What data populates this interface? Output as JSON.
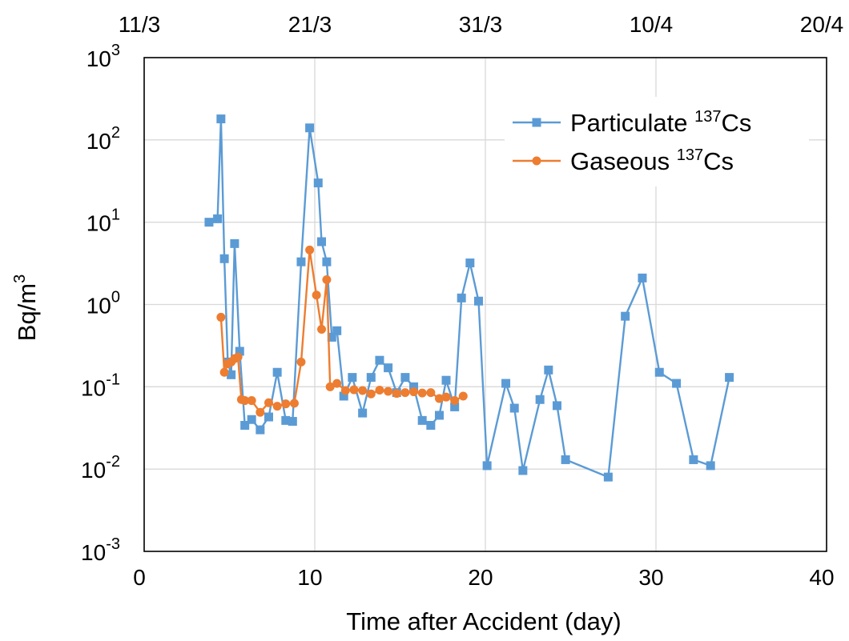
{
  "chart_data": {
    "type": "line",
    "title": "",
    "xlabel": "Time after Accident (day)",
    "ylabel": "Bq/m",
    "ylabel_sup": "3",
    "xlim": [
      0,
      40
    ],
    "ylim": [
      0.001,
      1000
    ],
    "y_scale": "log",
    "grid": true,
    "legend_position": "top-right",
    "x_ticks": [
      0,
      10,
      20,
      30,
      40
    ],
    "y_ticks": [
      {
        "base": "10",
        "exp": "-3",
        "value": 0.001
      },
      {
        "base": "10",
        "exp": "-2",
        "value": 0.01
      },
      {
        "base": "10",
        "exp": "-1",
        "value": 0.1
      },
      {
        "base": "10",
        "exp": "0",
        "value": 1
      },
      {
        "base": "10",
        "exp": "1",
        "value": 10
      },
      {
        "base": "10",
        "exp": "2",
        "value": 100
      },
      {
        "base": "10",
        "exp": "3",
        "value": 1000
      }
    ],
    "top_axis_ticks": [
      {
        "label": "11/3",
        "x": 0
      },
      {
        "label": "21/3",
        "x": 10
      },
      {
        "label": "31/3",
        "x": 20
      },
      {
        "label": "10/4",
        "x": 30
      },
      {
        "label": "20/4",
        "x": 40
      }
    ],
    "series": [
      {
        "name_prefix": "Particulate ",
        "name_sup": "137",
        "name_suffix": "Cs",
        "color": "#5b9bd5",
        "marker": "square",
        "points": [
          [
            3.8,
            10
          ],
          [
            4.3,
            11
          ],
          [
            4.5,
            180
          ],
          [
            4.7,
            3.6
          ],
          [
            4.9,
            0.2
          ],
          [
            5.1,
            0.14
          ],
          [
            5.3,
            5.5
          ],
          [
            5.6,
            0.27
          ],
          [
            5.9,
            0.034
          ],
          [
            6.3,
            0.04
          ],
          [
            6.8,
            0.03
          ],
          [
            7.3,
            0.043
          ],
          [
            7.8,
            0.15
          ],
          [
            8.3,
            0.039
          ],
          [
            8.7,
            0.038
          ],
          [
            9.2,
            3.3
          ],
          [
            9.7,
            140
          ],
          [
            10.2,
            30
          ],
          [
            10.4,
            5.8
          ],
          [
            10.7,
            3.3
          ],
          [
            11.0,
            0.4
          ],
          [
            11.3,
            0.48
          ],
          [
            11.7,
            0.077
          ],
          [
            12.2,
            0.13
          ],
          [
            12.8,
            0.048
          ],
          [
            13.3,
            0.13
          ],
          [
            13.8,
            0.21
          ],
          [
            14.3,
            0.17
          ],
          [
            14.8,
            0.085
          ],
          [
            15.3,
            0.13
          ],
          [
            15.8,
            0.1
          ],
          [
            16.3,
            0.039
          ],
          [
            16.8,
            0.034
          ],
          [
            17.3,
            0.045
          ],
          [
            17.7,
            0.12
          ],
          [
            18.2,
            0.057
          ],
          [
            18.6,
            1.2
          ],
          [
            19.1,
            3.2
          ],
          [
            19.6,
            1.1
          ],
          [
            20.1,
            0.011
          ],
          [
            21.2,
            0.11
          ],
          [
            21.7,
            0.055
          ],
          [
            22.2,
            0.0096
          ],
          [
            23.2,
            0.07
          ],
          [
            23.7,
            0.16
          ],
          [
            24.2,
            0.059
          ],
          [
            24.7,
            0.013
          ],
          [
            27.2,
            0.008
          ],
          [
            28.2,
            0.72
          ],
          [
            29.2,
            2.1
          ],
          [
            30.2,
            0.15
          ],
          [
            31.2,
            0.11
          ],
          [
            32.2,
            0.013
          ],
          [
            33.2,
            0.011
          ],
          [
            34.3,
            0.13
          ]
        ]
      },
      {
        "name_prefix": "Gaseous ",
        "name_sup": "137",
        "name_suffix": "Cs",
        "color": "#ed7d31",
        "marker": "circle",
        "points": [
          [
            4.5,
            0.7
          ],
          [
            4.7,
            0.15
          ],
          [
            4.9,
            0.19
          ],
          [
            5.1,
            0.2
          ],
          [
            5.3,
            0.22
          ],
          [
            5.5,
            0.23
          ],
          [
            5.7,
            0.07
          ],
          [
            5.9,
            0.068
          ],
          [
            6.3,
            0.068
          ],
          [
            6.8,
            0.049
          ],
          [
            7.3,
            0.064
          ],
          [
            7.8,
            0.058
          ],
          [
            8.3,
            0.062
          ],
          [
            8.8,
            0.063
          ],
          [
            9.2,
            0.2
          ],
          [
            9.7,
            4.6
          ],
          [
            10.1,
            1.3
          ],
          [
            10.4,
            0.5
          ],
          [
            10.7,
            2.0
          ],
          [
            10.9,
            0.1
          ],
          [
            11.3,
            0.11
          ],
          [
            11.8,
            0.09
          ],
          [
            12.3,
            0.092
          ],
          [
            12.8,
            0.09
          ],
          [
            13.3,
            0.082
          ],
          [
            13.8,
            0.091
          ],
          [
            14.3,
            0.088
          ],
          [
            14.8,
            0.083
          ],
          [
            15.3,
            0.085
          ],
          [
            15.8,
            0.087
          ],
          [
            16.3,
            0.084
          ],
          [
            16.8,
            0.085
          ],
          [
            17.3,
            0.072
          ],
          [
            17.7,
            0.075
          ],
          [
            18.2,
            0.068
          ],
          [
            18.7,
            0.077
          ]
        ]
      }
    ]
  }
}
